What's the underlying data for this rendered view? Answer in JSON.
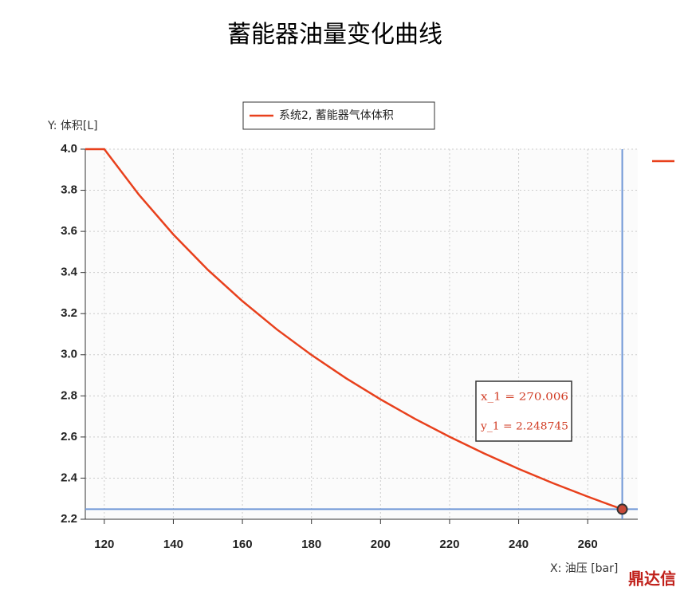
{
  "chart_data": {
    "type": "line",
    "title": "蓄能器油量变化曲线",
    "y_label": "Y: 体积[L]",
    "x_label": "X: 油压 [bar]",
    "x": [
      114.5,
      120,
      130,
      140,
      150,
      160,
      170,
      180,
      190,
      200,
      210,
      220,
      230,
      240,
      250,
      260,
      265,
      270
    ],
    "series": [
      {
        "name": "系统2, 蓄能器气体体积",
        "color": "#e8401c",
        "values": [
          4.0,
          4.0,
          3.779,
          3.585,
          3.413,
          3.261,
          3.123,
          2.999,
          2.886,
          2.783,
          2.688,
          2.601,
          2.52,
          2.445,
          2.375,
          2.31,
          2.279,
          2.2487
        ]
      }
    ],
    "xlim": [
      114.5,
      274.5
    ],
    "xticks": [
      120,
      140,
      160,
      180,
      200,
      220,
      240,
      260
    ],
    "ylim": [
      2.2,
      4.0
    ],
    "yticks": [
      2.2,
      2.4,
      2.6,
      2.8,
      {
        "value": 3,
        "label": "3.0"
      },
      3.2,
      3.4,
      3.6,
      3.8,
      {
        "value": 4,
        "label": "4.0"
      }
    ],
    "grid": true,
    "legend": "top",
    "cursor": {
      "x": 270.006,
      "y": 2.248745,
      "x_label": "x_1 = 270.006",
      "y_label": "y_1 = 2.248745",
      "color": "#6f97d6"
    },
    "watermark": "鼎达信"
  }
}
